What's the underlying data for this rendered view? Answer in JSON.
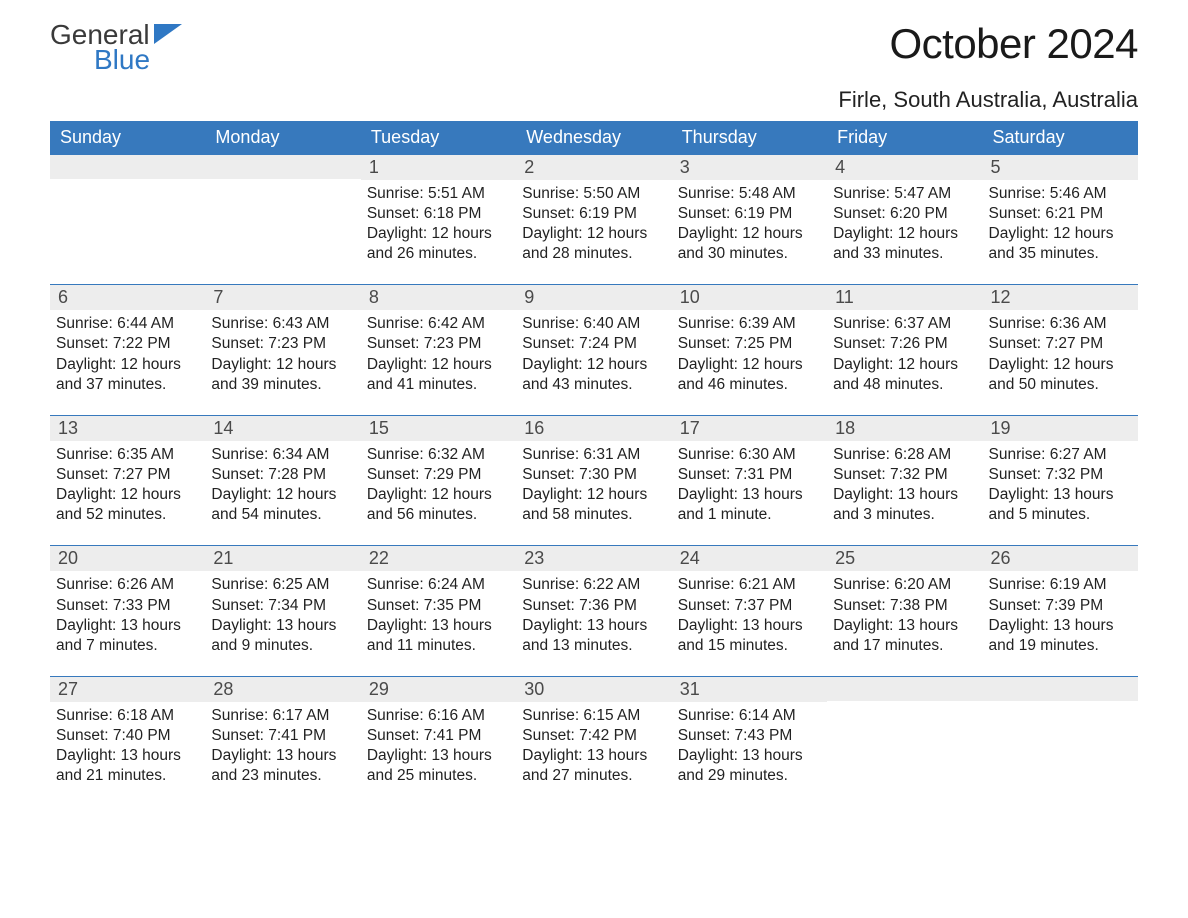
{
  "logo": {
    "line1": "General",
    "line2": "Blue"
  },
  "title": "October 2024",
  "location": "Firle, South Australia, Australia",
  "colors": {
    "header_bg": "#3779bd",
    "header_text": "#ffffff",
    "daynum_bg": "#ededed",
    "row_border": "#3779bd",
    "logo_blue": "#2f78c4",
    "body_text": "#222222",
    "page_bg": "#ffffff"
  },
  "typography": {
    "title_fontsize": 42,
    "location_fontsize": 22,
    "header_fontsize": 18,
    "daynum_fontsize": 18,
    "body_fontsize": 15.5,
    "font_family": "Arial"
  },
  "columns": [
    "Sunday",
    "Monday",
    "Tuesday",
    "Wednesday",
    "Thursday",
    "Friday",
    "Saturday"
  ],
  "weeks": [
    [
      {
        "n": "",
        "lines": [
          "",
          "",
          "",
          ""
        ]
      },
      {
        "n": "",
        "lines": [
          "",
          "",
          "",
          ""
        ]
      },
      {
        "n": "1",
        "lines": [
          "Sunrise: 5:51 AM",
          "Sunset: 6:18 PM",
          "Daylight: 12 hours",
          "and 26 minutes."
        ]
      },
      {
        "n": "2",
        "lines": [
          "Sunrise: 5:50 AM",
          "Sunset: 6:19 PM",
          "Daylight: 12 hours",
          "and 28 minutes."
        ]
      },
      {
        "n": "3",
        "lines": [
          "Sunrise: 5:48 AM",
          "Sunset: 6:19 PM",
          "Daylight: 12 hours",
          "and 30 minutes."
        ]
      },
      {
        "n": "4",
        "lines": [
          "Sunrise: 5:47 AM",
          "Sunset: 6:20 PM",
          "Daylight: 12 hours",
          "and 33 minutes."
        ]
      },
      {
        "n": "5",
        "lines": [
          "Sunrise: 5:46 AM",
          "Sunset: 6:21 PM",
          "Daylight: 12 hours",
          "and 35 minutes."
        ]
      }
    ],
    [
      {
        "n": "6",
        "lines": [
          "Sunrise: 6:44 AM",
          "Sunset: 7:22 PM",
          "Daylight: 12 hours",
          "and 37 minutes."
        ]
      },
      {
        "n": "7",
        "lines": [
          "Sunrise: 6:43 AM",
          "Sunset: 7:23 PM",
          "Daylight: 12 hours",
          "and 39 minutes."
        ]
      },
      {
        "n": "8",
        "lines": [
          "Sunrise: 6:42 AM",
          "Sunset: 7:23 PM",
          "Daylight: 12 hours",
          "and 41 minutes."
        ]
      },
      {
        "n": "9",
        "lines": [
          "Sunrise: 6:40 AM",
          "Sunset: 7:24 PM",
          "Daylight: 12 hours",
          "and 43 minutes."
        ]
      },
      {
        "n": "10",
        "lines": [
          "Sunrise: 6:39 AM",
          "Sunset: 7:25 PM",
          "Daylight: 12 hours",
          "and 46 minutes."
        ]
      },
      {
        "n": "11",
        "lines": [
          "Sunrise: 6:37 AM",
          "Sunset: 7:26 PM",
          "Daylight: 12 hours",
          "and 48 minutes."
        ]
      },
      {
        "n": "12",
        "lines": [
          "Sunrise: 6:36 AM",
          "Sunset: 7:27 PM",
          "Daylight: 12 hours",
          "and 50 minutes."
        ]
      }
    ],
    [
      {
        "n": "13",
        "lines": [
          "Sunrise: 6:35 AM",
          "Sunset: 7:27 PM",
          "Daylight: 12 hours",
          "and 52 minutes."
        ]
      },
      {
        "n": "14",
        "lines": [
          "Sunrise: 6:34 AM",
          "Sunset: 7:28 PM",
          "Daylight: 12 hours",
          "and 54 minutes."
        ]
      },
      {
        "n": "15",
        "lines": [
          "Sunrise: 6:32 AM",
          "Sunset: 7:29 PM",
          "Daylight: 12 hours",
          "and 56 minutes."
        ]
      },
      {
        "n": "16",
        "lines": [
          "Sunrise: 6:31 AM",
          "Sunset: 7:30 PM",
          "Daylight: 12 hours",
          "and 58 minutes."
        ]
      },
      {
        "n": "17",
        "lines": [
          "Sunrise: 6:30 AM",
          "Sunset: 7:31 PM",
          "Daylight: 13 hours",
          "and 1 minute."
        ]
      },
      {
        "n": "18",
        "lines": [
          "Sunrise: 6:28 AM",
          "Sunset: 7:32 PM",
          "Daylight: 13 hours",
          "and 3 minutes."
        ]
      },
      {
        "n": "19",
        "lines": [
          "Sunrise: 6:27 AM",
          "Sunset: 7:32 PM",
          "Daylight: 13 hours",
          "and 5 minutes."
        ]
      }
    ],
    [
      {
        "n": "20",
        "lines": [
          "Sunrise: 6:26 AM",
          "Sunset: 7:33 PM",
          "Daylight: 13 hours",
          "and 7 minutes."
        ]
      },
      {
        "n": "21",
        "lines": [
          "Sunrise: 6:25 AM",
          "Sunset: 7:34 PM",
          "Daylight: 13 hours",
          "and 9 minutes."
        ]
      },
      {
        "n": "22",
        "lines": [
          "Sunrise: 6:24 AM",
          "Sunset: 7:35 PM",
          "Daylight: 13 hours",
          "and 11 minutes."
        ]
      },
      {
        "n": "23",
        "lines": [
          "Sunrise: 6:22 AM",
          "Sunset: 7:36 PM",
          "Daylight: 13 hours",
          "and 13 minutes."
        ]
      },
      {
        "n": "24",
        "lines": [
          "Sunrise: 6:21 AM",
          "Sunset: 7:37 PM",
          "Daylight: 13 hours",
          "and 15 minutes."
        ]
      },
      {
        "n": "25",
        "lines": [
          "Sunrise: 6:20 AM",
          "Sunset: 7:38 PM",
          "Daylight: 13 hours",
          "and 17 minutes."
        ]
      },
      {
        "n": "26",
        "lines": [
          "Sunrise: 6:19 AM",
          "Sunset: 7:39 PM",
          "Daylight: 13 hours",
          "and 19 minutes."
        ]
      }
    ],
    [
      {
        "n": "27",
        "lines": [
          "Sunrise: 6:18 AM",
          "Sunset: 7:40 PM",
          "Daylight: 13 hours",
          "and 21 minutes."
        ]
      },
      {
        "n": "28",
        "lines": [
          "Sunrise: 6:17 AM",
          "Sunset: 7:41 PM",
          "Daylight: 13 hours",
          "and 23 minutes."
        ]
      },
      {
        "n": "29",
        "lines": [
          "Sunrise: 6:16 AM",
          "Sunset: 7:41 PM",
          "Daylight: 13 hours",
          "and 25 minutes."
        ]
      },
      {
        "n": "30",
        "lines": [
          "Sunrise: 6:15 AM",
          "Sunset: 7:42 PM",
          "Daylight: 13 hours",
          "and 27 minutes."
        ]
      },
      {
        "n": "31",
        "lines": [
          "Sunrise: 6:14 AM",
          "Sunset: 7:43 PM",
          "Daylight: 13 hours",
          "and 29 minutes."
        ]
      },
      {
        "n": "",
        "lines": [
          "",
          "",
          "",
          ""
        ]
      },
      {
        "n": "",
        "lines": [
          "",
          "",
          "",
          ""
        ]
      }
    ]
  ]
}
